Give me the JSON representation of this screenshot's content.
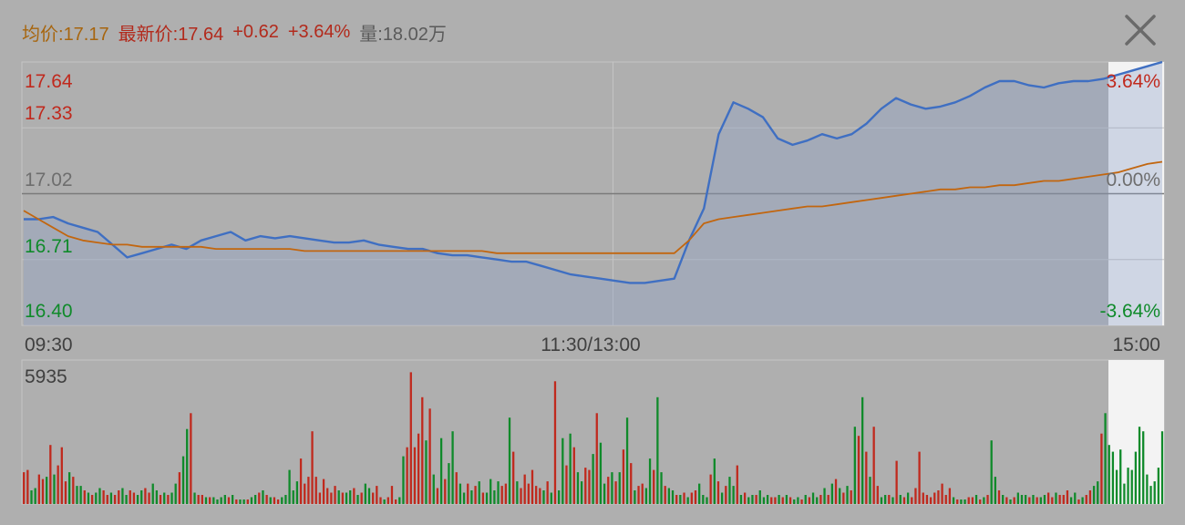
{
  "header": {
    "avg_label": "均价:",
    "avg_value": "17.17",
    "latest_label": "最新价:",
    "latest_value": "17.64",
    "change": "+0.62",
    "change_pct": "+3.64%",
    "volume_label": "量:",
    "volume_value": "18.02万"
  },
  "colors": {
    "background": "#afafaf",
    "price_line": "#3f6fc2",
    "avg_line": "#c2660f",
    "up": "#c0291d",
    "down": "#0f8a2a",
    "neutral": "#6e6e6e",
    "highlight": "#ffffff"
  },
  "close_icon": "close-icon",
  "chart_data": [
    {
      "type": "line",
      "y_ticks_left": [
        "17.64",
        "17.33",
        "17.02",
        "16.71",
        "16.40"
      ],
      "y_ticks_right": [
        "3.64%",
        "0.00%",
        "-3.64%"
      ],
      "x_ticks": [
        "09:30",
        "11:30/13:00",
        "15:00"
      ],
      "ylim": [
        16.4,
        17.64
      ],
      "reference": 17.02,
      "grid": true,
      "series": [
        {
          "key": "price",
          "values": [
            16.9,
            16.9,
            16.91,
            16.88,
            16.86,
            16.84,
            16.78,
            16.72,
            16.74,
            16.76,
            16.78,
            16.76,
            16.8,
            16.82,
            16.84,
            16.8,
            16.82,
            16.81,
            16.82,
            16.81,
            16.8,
            16.79,
            16.79,
            16.8,
            16.78,
            16.77,
            16.76,
            16.76,
            16.74,
            16.73,
            16.73,
            16.72,
            16.71,
            16.7,
            16.7,
            16.68,
            16.66,
            16.64,
            16.63,
            16.62,
            16.61,
            16.6,
            16.6,
            16.61,
            16.62,
            16.8,
            16.95,
            17.3,
            17.45,
            17.42,
            17.38,
            17.28,
            17.25,
            17.27,
            17.3,
            17.28,
            17.3,
            17.35,
            17.42,
            17.47,
            17.44,
            17.42,
            17.43,
            17.45,
            17.48,
            17.52,
            17.55,
            17.55,
            17.53,
            17.52,
            17.54,
            17.55,
            17.55,
            17.56,
            17.58,
            17.6,
            17.62,
            17.64
          ]
        },
        {
          "key": "average",
          "values": [
            16.94,
            16.9,
            16.86,
            16.82,
            16.8,
            16.79,
            16.78,
            16.78,
            16.77,
            16.77,
            16.77,
            16.77,
            16.77,
            16.76,
            16.76,
            16.76,
            16.76,
            16.76,
            16.76,
            16.75,
            16.75,
            16.75,
            16.75,
            16.75,
            16.75,
            16.75,
            16.75,
            16.75,
            16.75,
            16.75,
            16.75,
            16.75,
            16.74,
            16.74,
            16.74,
            16.74,
            16.74,
            16.74,
            16.74,
            16.74,
            16.74,
            16.74,
            16.74,
            16.74,
            16.74,
            16.8,
            16.88,
            16.9,
            16.91,
            16.92,
            16.93,
            16.94,
            16.95,
            16.96,
            16.96,
            16.97,
            16.98,
            16.99,
            17.0,
            17.01,
            17.02,
            17.03,
            17.04,
            17.04,
            17.05,
            17.05,
            17.06,
            17.06,
            17.07,
            17.08,
            17.08,
            17.09,
            17.1,
            17.11,
            17.12,
            17.14,
            17.16,
            17.17
          ]
        }
      ]
    },
    {
      "type": "bar",
      "max_label": "5935",
      "values": [
        1400,
        1500,
        600,
        700,
        1300,
        1100,
        1200,
        2600,
        1300,
        1700,
        2500,
        1000,
        1400,
        1200,
        800,
        800,
        600,
        500,
        400,
        500,
        700,
        600,
        400,
        500,
        400,
        600,
        700,
        400,
        600,
        500,
        400,
        600,
        700,
        500,
        900,
        600,
        400,
        500,
        400,
        500,
        900,
        1400,
        2100,
        3300,
        4000,
        500,
        400,
        400,
        300,
        300,
        300,
        200,
        300,
        400,
        300,
        400,
        200,
        200,
        200,
        200,
        300,
        400,
        500,
        600,
        400,
        300,
        300,
        200,
        300,
        400,
        1500,
        600,
        1000,
        2000,
        900,
        1200,
        3200,
        1200,
        500,
        1100,
        700,
        500,
        800,
        600,
        500,
        500,
        600,
        700,
        400,
        500,
        900,
        700,
        500,
        800,
        300,
        200,
        300,
        800,
        200,
        300,
        2100,
        2500,
        5800,
        2500,
        3100,
        4700,
        2800,
        4200,
        1300,
        700,
        2900,
        1100,
        1800,
        3200,
        1400,
        900,
        500,
        900,
        600,
        800,
        1000,
        500,
        500,
        1100,
        600,
        1000,
        800,
        900,
        3800,
        2300,
        1000,
        700,
        1300,
        900,
        1500,
        800,
        700,
        600,
        1000,
        500,
        5400,
        600,
        2900,
        1700,
        3100,
        2500,
        1400,
        1000,
        1600,
        1500,
        2200,
        4000,
        2700,
        900,
        1200,
        1400,
        1000,
        1400,
        2400,
        3800,
        1800,
        600,
        800,
        900,
        700,
        2000,
        1500,
        4700,
        1400,
        800,
        700,
        600,
        400,
        400,
        500,
        300,
        500,
        600,
        900,
        400,
        300,
        1300,
        2000,
        1000,
        500,
        800,
        1200,
        800,
        1700,
        400,
        500,
        300,
        400,
        400,
        600,
        300,
        400,
        300,
        300,
        400,
        300,
        400,
        300,
        200,
        300,
        200,
        400,
        300,
        500,
        300,
        400,
        700,
        400,
        900,
        1100,
        700,
        500,
        800,
        600,
        3400,
        3000,
        4700,
        2300,
        1200,
        3400,
        800,
        300,
        400,
        400,
        300,
        1900,
        400,
        300,
        500,
        300,
        700,
        2300,
        500,
        400,
        300,
        500,
        600,
        900,
        400,
        700,
        300,
        200,
        200,
        200,
        300,
        300,
        400,
        200,
        300,
        400,
        2800,
        1200,
        600,
        400,
        300,
        200,
        300,
        500,
        400,
        400,
        300,
        400,
        300,
        300,
        400,
        500,
        300,
        500,
        400,
        400,
        600,
        300,
        500,
        200,
        300,
        400,
        600,
        800,
        1000,
        3100,
        4000,
        2600,
        2300,
        1500,
        2400,
        900,
        1600,
        1500,
        2300,
        3400,
        3200,
        1300,
        800,
        1000,
        1600,
        3200
      ],
      "directions": "rrggrrgrgrrrgrggrgrggrrgrrggrrggrrggrgrggrggrgrrgrggggrgrggrggrgrgrrgggggrrrrrrrrrrgrggrgrggrrrgrrrggrrrrrgrgrgrggrggrgrgrggggrrgrgrrrrrrgrgrggrgrggrrgrggrgrgrgrgrrggrggrggrgrgrrgggrgrgrggrgrggrgggrrgrgrggrgrggrgrgrgrgrgrgrgrrggrgrgrgrrrrrrrrrrrgrggrrgrgrggrgrgrgggrgrggrrgrrrggrgrrggr"
    }
  ]
}
